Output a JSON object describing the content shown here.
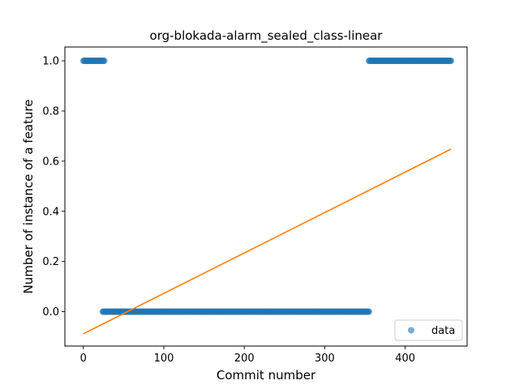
{
  "chart_data": {
    "type": "scatter",
    "title": "org-blokada-alarm_sealed_class-linear",
    "xlabel": "Commit number",
    "ylabel": "Number of instance of a feature",
    "xlim": [
      -23,
      477
    ],
    "ylim": [
      -0.137,
      1.055
    ],
    "xticks": [
      0,
      100,
      200,
      300,
      400
    ],
    "xtick_labels": [
      "0",
      "100",
      "200",
      "300",
      "400"
    ],
    "yticks": [
      0.0,
      0.2,
      0.4,
      0.6,
      0.8,
      1.0
    ],
    "ytick_labels": [
      "0.0",
      "0.2",
      "0.4",
      "0.6",
      "0.8",
      "1.0"
    ],
    "grid": false,
    "legend_position": "lower right",
    "series": [
      {
        "name": "data",
        "kind": "scatter",
        "color": "#1f77b4",
        "segments": [
          {
            "x_start": 0,
            "x_end": 26,
            "y": 1.0
          },
          {
            "x_start": 24,
            "x_end": 355,
            "y": 0.0
          },
          {
            "x_start": 355,
            "x_end": 457,
            "y": 1.0
          }
        ]
      },
      {
        "name": "",
        "kind": "line",
        "color": "#ff7f0e",
        "points": [
          [
            0,
            -0.088
          ],
          [
            457,
            0.648
          ]
        ]
      }
    ]
  }
}
